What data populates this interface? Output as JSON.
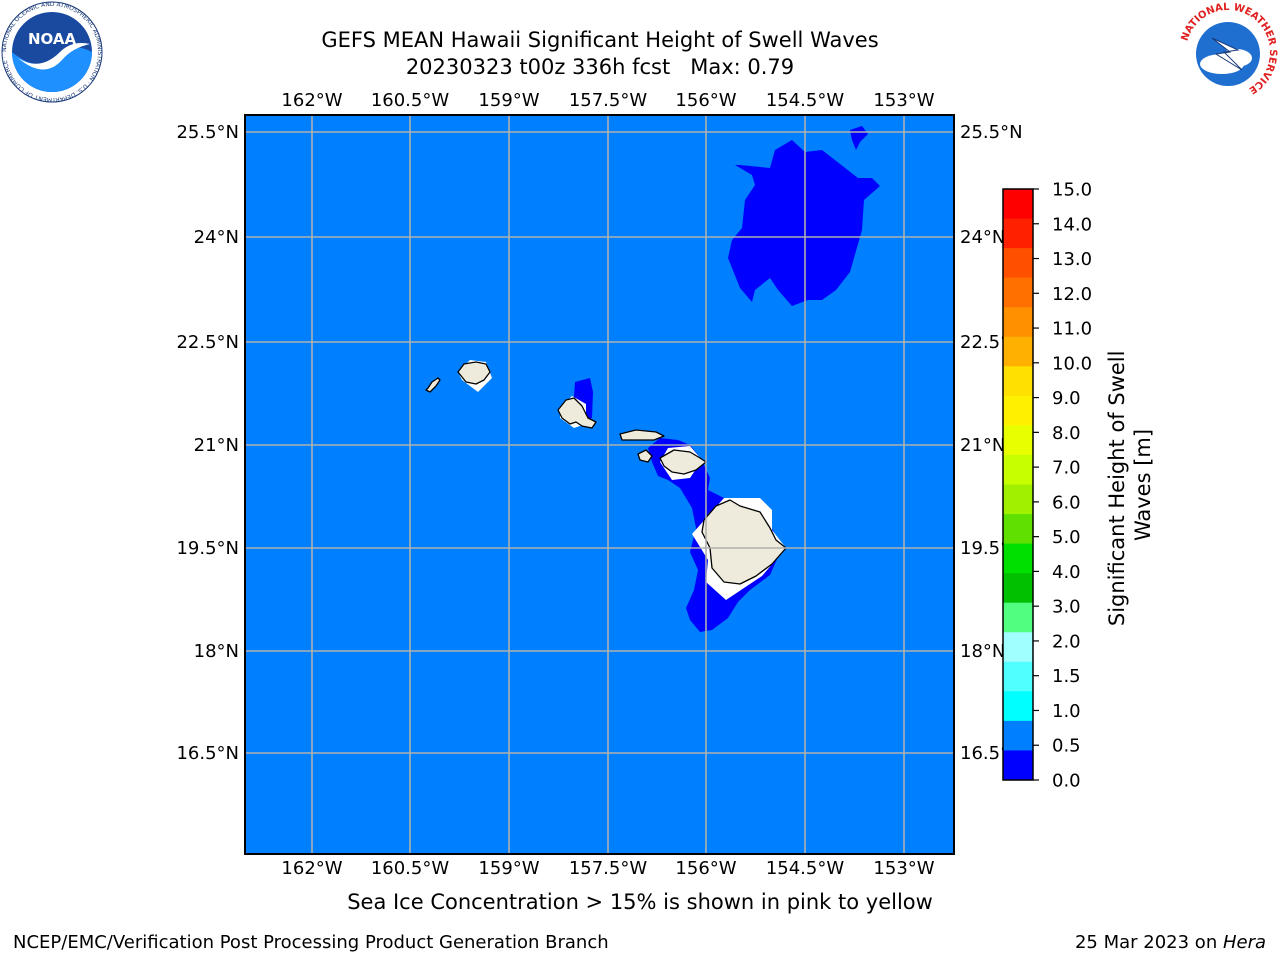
{
  "title": {
    "line1": "GEFS MEAN Hawaii Significant Height of Swell Waves",
    "line2": "20230323 t00z 336h fcst   Max: 0.79"
  },
  "map": {
    "lon_labels": [
      "162°W",
      "160.5°W",
      "159°W",
      "157.5°W",
      "156°W",
      "154.5°W",
      "153°W"
    ],
    "lat_labels": [
      "25.5°N",
      "24°N",
      "22.5°N",
      "21°N",
      "19.5°N",
      "18°N",
      "16.5°N"
    ],
    "ocean_color": "#0080ff",
    "low_swell_color": "#0000ff",
    "land_color": "#efebdc",
    "grid_color": "#b0b0b0"
  },
  "colorbar": {
    "label": "Significant Height of Swell\nWaves [m]",
    "ticks": [
      "15.0",
      "14.0",
      "13.0",
      "12.0",
      "11.0",
      "10.0",
      "9.0",
      "8.0",
      "7.0",
      "6.0",
      "5.0",
      "4.0",
      "3.0",
      "2.0",
      "1.5",
      "1.0",
      "0.5",
      "0.0"
    ],
    "colors_top_to_bottom": [
      "#ff0000",
      "#ff2000",
      "#ff5000",
      "#ff7000",
      "#ff9000",
      "#ffb000",
      "#ffe000",
      "#fff000",
      "#e8ff00",
      "#c8ff00",
      "#a0f000",
      "#60e000",
      "#00e000",
      "#00c000",
      "#50ff80",
      "#a0ffff",
      "#50ffff",
      "#00ffff",
      "#0080ff",
      "#0000ff"
    ]
  },
  "caption": "Sea Ice Concentration > 15% is shown in pink to yellow",
  "footer": {
    "left": "NCEP/EMC/Verification Post Processing Product Generation Branch",
    "right_prefix": "25 Mar 2023 on ",
    "right_host": "Hera"
  },
  "logos": {
    "noaa": "NOAA",
    "noaa_ring": "NATIONAL OCEANIC AND ATMOSPHERIC ADMINISTRATION · U.S. DEPARTMENT OF COMMERCE ·",
    "nws_ring": "NATIONAL WEATHER SERVICE"
  }
}
